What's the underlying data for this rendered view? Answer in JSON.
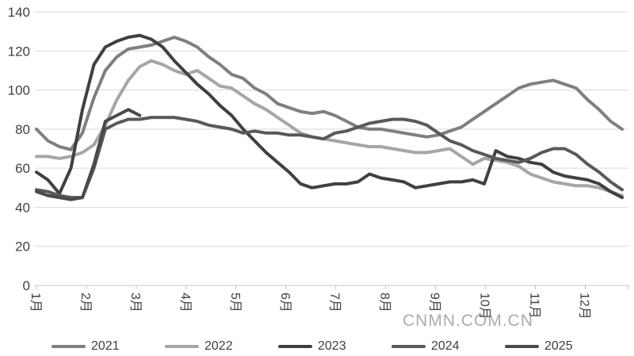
{
  "watermark": {
    "text": "CNMN.COM.CN"
  },
  "chart_data": {
    "type": "line",
    "title": "",
    "xlabel": "",
    "ylabel": "",
    "x_categories": [
      "1月",
      "2月",
      "3月",
      "4月",
      "5月",
      "6月",
      "7月",
      "8月",
      "9月",
      "10月",
      "11月",
      "12月"
    ],
    "y_ticks": [
      0,
      20,
      40,
      60,
      80,
      100,
      120,
      140
    ],
    "ylim": [
      0,
      140
    ],
    "grid": "horizontal",
    "legend_position": "bottom",
    "points_per_series": "weekly (52 per full year)",
    "series": [
      {
        "name": "2021",
        "color": "#7f7f7f",
        "values": [
          80,
          74,
          71,
          69.5,
          78,
          96,
          110,
          117,
          121,
          122,
          123,
          125,
          127,
          125,
          122,
          117,
          113,
          108,
          106,
          101,
          98,
          93,
          91,
          89,
          88,
          89,
          87,
          84,
          81,
          80,
          80,
          79,
          78,
          77,
          76,
          77,
          79,
          81,
          85,
          89,
          93,
          97,
          101,
          103,
          104,
          105,
          103,
          101,
          95,
          90,
          84,
          80
        ]
      },
      {
        "name": "2022",
        "color": "#a6a6a6",
        "values": [
          66,
          66,
          65,
          66,
          68,
          72,
          82,
          95,
          105,
          112,
          115,
          113,
          110,
          108,
          110,
          106,
          102,
          101,
          97,
          93,
          90,
          86,
          82,
          78,
          76,
          75,
          74,
          73,
          72,
          71,
          71,
          70,
          69,
          68,
          68,
          69,
          70,
          66,
          62,
          65,
          64,
          63,
          61,
          57,
          55,
          53,
          52,
          51,
          51,
          50,
          48,
          46
        ]
      },
      {
        "name": "2023",
        "color": "#404040",
        "values": [
          58,
          54,
          47,
          60,
          90,
          113,
          122,
          125,
          127,
          128,
          126,
          122,
          115,
          109,
          103,
          98,
          92,
          87,
          80,
          74,
          68,
          63,
          58,
          52,
          50,
          51,
          52,
          52,
          53,
          57,
          55,
          54,
          53,
          50,
          51,
          52,
          53,
          53,
          54,
          52,
          69,
          66,
          65,
          63,
          62,
          58,
          56,
          55,
          54,
          52,
          48,
          45
        ]
      },
      {
        "name": "2024",
        "color": "#595959",
        "values": [
          49,
          48,
          46,
          45,
          45,
          60,
          80,
          83,
          85,
          85,
          86,
          86,
          86,
          85,
          84,
          82,
          81,
          80,
          78,
          79,
          78,
          78,
          77,
          77,
          76,
          75,
          78,
          79,
          81,
          83,
          84,
          85,
          85,
          84,
          82,
          78,
          74,
          72,
          69,
          67,
          65,
          64,
          63,
          65,
          68,
          70,
          70,
          67,
          62,
          58,
          53,
          49
        ]
      },
      {
        "name": "2025",
        "color": "#4a4a4a",
        "values": [
          48,
          46,
          45,
          44,
          45,
          62,
          84,
          87,
          90,
          87
        ]
      }
    ]
  }
}
